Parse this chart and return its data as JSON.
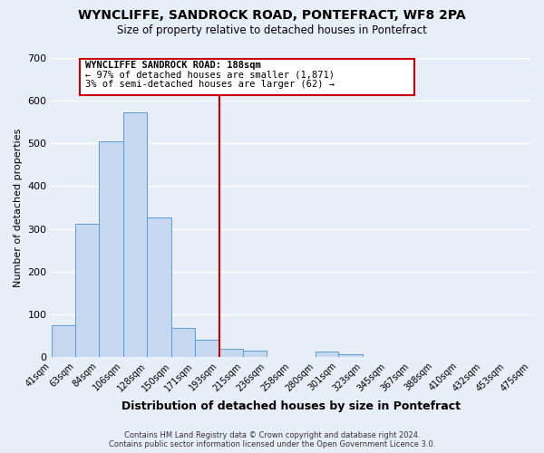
{
  "title": "WYNCLIFFE, SANDROCK ROAD, PONTEFRACT, WF8 2PA",
  "subtitle": "Size of property relative to detached houses in Pontefract",
  "xlabel": "Distribution of detached houses by size in Pontefract",
  "ylabel": "Number of detached properties",
  "bar_color": "#c5d8f0",
  "bar_edge_color": "#5b9bd5",
  "background_color": "#e8eef8",
  "grid_color": "#ffffff",
  "bin_edges": [
    41,
    63,
    84,
    106,
    128,
    150,
    171,
    193,
    215,
    236,
    258,
    280,
    301,
    323,
    345,
    367,
    388,
    410,
    432,
    453,
    475
  ],
  "bin_labels": [
    "41sqm",
    "63sqm",
    "84sqm",
    "106sqm",
    "128sqm",
    "150sqm",
    "171sqm",
    "193sqm",
    "215sqm",
    "236sqm",
    "258sqm",
    "280sqm",
    "301sqm",
    "323sqm",
    "345sqm",
    "367sqm",
    "388sqm",
    "410sqm",
    "432sqm",
    "453sqm",
    "475sqm"
  ],
  "bar_heights": [
    74,
    311,
    505,
    572,
    327,
    68,
    40,
    19,
    15,
    0,
    0,
    12,
    6,
    0,
    0,
    0,
    0,
    0,
    0,
    0
  ],
  "vline_x": 193,
  "vline_color": "#cc0000",
  "ylim": [
    0,
    700
  ],
  "yticks": [
    0,
    100,
    200,
    300,
    400,
    500,
    600,
    700
  ],
  "annotation_title": "WYNCLIFFE SANDROCK ROAD: 188sqm",
  "annotation_line1": "← 97% of detached houses are smaller (1,871)",
  "annotation_line2": "3% of semi-detached houses are larger (62) →",
  "annotation_box_color": "#ffffff",
  "annotation_box_edge": "#cc0000",
  "footnote1": "Contains HM Land Registry data © Crown copyright and database right 2024.",
  "footnote2": "Contains public sector information licensed under the Open Government Licence 3.0."
}
